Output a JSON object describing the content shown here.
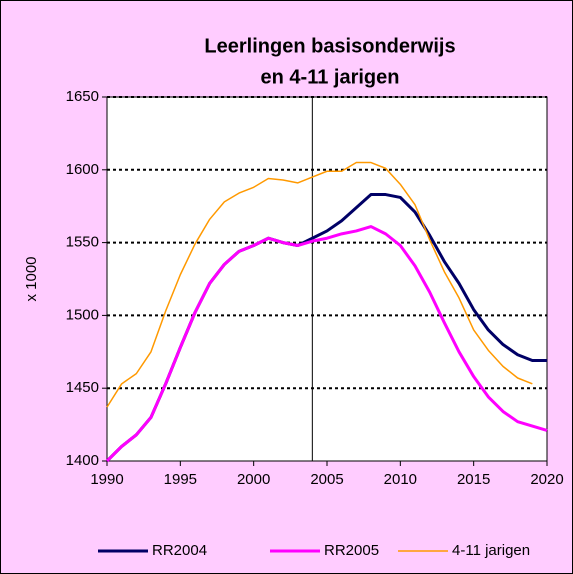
{
  "chart_data": {
    "type": "line",
    "title": [
      "Leerlingen basisonderwijs",
      "en 4-11 jarigen"
    ],
    "ylabel": "x 1000",
    "x": [
      1990,
      1991,
      1992,
      1993,
      1994,
      1995,
      1996,
      1997,
      1998,
      1999,
      2000,
      2001,
      2002,
      2003,
      2004,
      2005,
      2006,
      2007,
      2008,
      2009,
      2010,
      2011,
      2012,
      2013,
      2014,
      2015,
      2016,
      2017,
      2018,
      2019,
      2020
    ],
    "series": [
      {
        "name": "RR2004",
        "color": "#000066",
        "values": [
          1400,
          1410,
          1418,
          1430,
          1453,
          1478,
          1502,
          1522,
          1535,
          1544,
          1548,
          1553,
          1550,
          1548,
          1553,
          1558,
          1565,
          1574,
          1583,
          1583,
          1581,
          1571,
          1555,
          1537,
          1522,
          1504,
          1490,
          1480,
          1473,
          1469,
          1469
        ]
      },
      {
        "name": "RR2005",
        "color": "#ff00ff",
        "values": [
          1400,
          1410,
          1418,
          1430,
          1453,
          1478,
          1502,
          1522,
          1535,
          1544,
          1548,
          1553,
          1550,
          1548,
          1551,
          1553,
          1556,
          1558,
          1561,
          1556,
          1548,
          1534,
          1516,
          1495,
          1475,
          1458,
          1444,
          1434,
          1427,
          1424,
          1421
        ]
      },
      {
        "name": "4-11 jarigen",
        "color": "#ff9900",
        "values": [
          1437,
          1453,
          1460,
          1475,
          1503,
          1528,
          1549,
          1566,
          1578,
          1584,
          1588,
          1594,
          1593,
          1591,
          1595,
          1599,
          1599,
          1605,
          1605,
          1601,
          1590,
          1576,
          1552,
          1530,
          1512,
          1490,
          1476,
          1465,
          1457,
          1453,
          null
        ]
      }
    ],
    "xlim": [
      1990,
      2020
    ],
    "xticks": [
      1990,
      1995,
      2000,
      2005,
      2010,
      2015,
      2020
    ],
    "ylim": [
      1400,
      1650
    ],
    "yticks": [
      1400,
      1450,
      1500,
      1550,
      1600,
      1650
    ],
    "grid": true,
    "vline_x": 2004,
    "legend": "bottom"
  }
}
